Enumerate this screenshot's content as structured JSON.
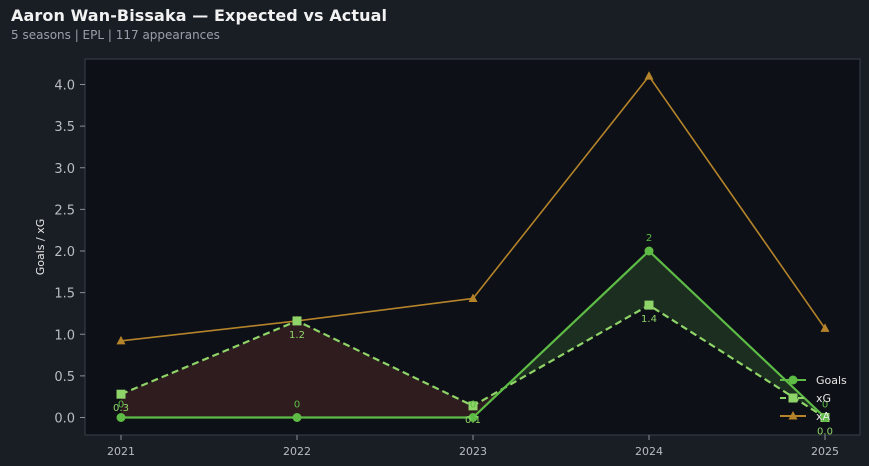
{
  "header": {
    "title": "Aaron Wan-Bissaka — Expected vs Actual",
    "subtitle": "5 seasons | EPL | 117 appearances"
  },
  "chart_data": {
    "type": "line",
    "title": "Aaron Wan-Bissaka — Expected vs Actual",
    "subtitle": "5 seasons | EPL | 117 appearances",
    "x": [
      "2021",
      "2022",
      "2023",
      "2024",
      "2025"
    ],
    "xlabel": "",
    "ylabel": "Goals / xG",
    "ylim": [
      -0.2,
      4.3
    ],
    "yticks": [
      "0.0",
      "0.5",
      "1.0",
      "1.5",
      "2.0",
      "2.5",
      "3.0",
      "3.5",
      "4.0"
    ],
    "grid": false,
    "legend_position": "bottom-right",
    "series": [
      {
        "name": "Goals",
        "values": [
          0,
          0,
          0,
          2,
          0
        ],
        "labels": [
          "0",
          "0",
          "0",
          "2",
          "0"
        ],
        "color": "#5dbb46",
        "marker": "circle",
        "style": "solid"
      },
      {
        "name": "xG",
        "values": [
          0.28,
          1.16,
          0.14,
          1.35,
          0.0
        ],
        "labels": [
          "0.3",
          "1.2",
          "0.1",
          "1.4",
          "0.0"
        ],
        "color": "#8fd468",
        "marker": "square",
        "style": "dashed"
      },
      {
        "name": "xA",
        "values": [
          0.92,
          1.16,
          1.43,
          4.1,
          1.07
        ],
        "color": "#b5842a",
        "marker": "triangle",
        "style": "solid"
      }
    ],
    "fill_colors": {
      "overperform": "#1c2e1f",
      "underperform": "#2e1c1f"
    }
  }
}
